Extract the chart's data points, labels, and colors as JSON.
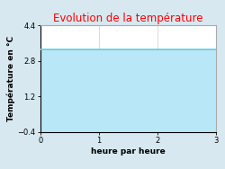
{
  "title": "Evolution de la température",
  "title_color": "#ff0000",
  "xlabel": "heure par heure",
  "ylabel": "Température en °C",
  "xlim": [
    0,
    3
  ],
  "ylim": [
    -0.4,
    4.4
  ],
  "xticks": [
    0,
    1,
    2,
    3
  ],
  "yticks": [
    -0.4,
    1.2,
    2.8,
    4.4
  ],
  "x_data": [
    0,
    3
  ],
  "y_data": [
    3.3,
    3.3
  ],
  "line_color": "#62cce0",
  "fill_color": "#b8e8f8",
  "background_color": "#d8e8f0",
  "plot_bg_color": "#ffffff",
  "line_width": 1.2,
  "title_fontsize": 8.5,
  "label_fontsize": 6.5,
  "tick_fontsize": 6.0,
  "grid_color": "#cccccc"
}
